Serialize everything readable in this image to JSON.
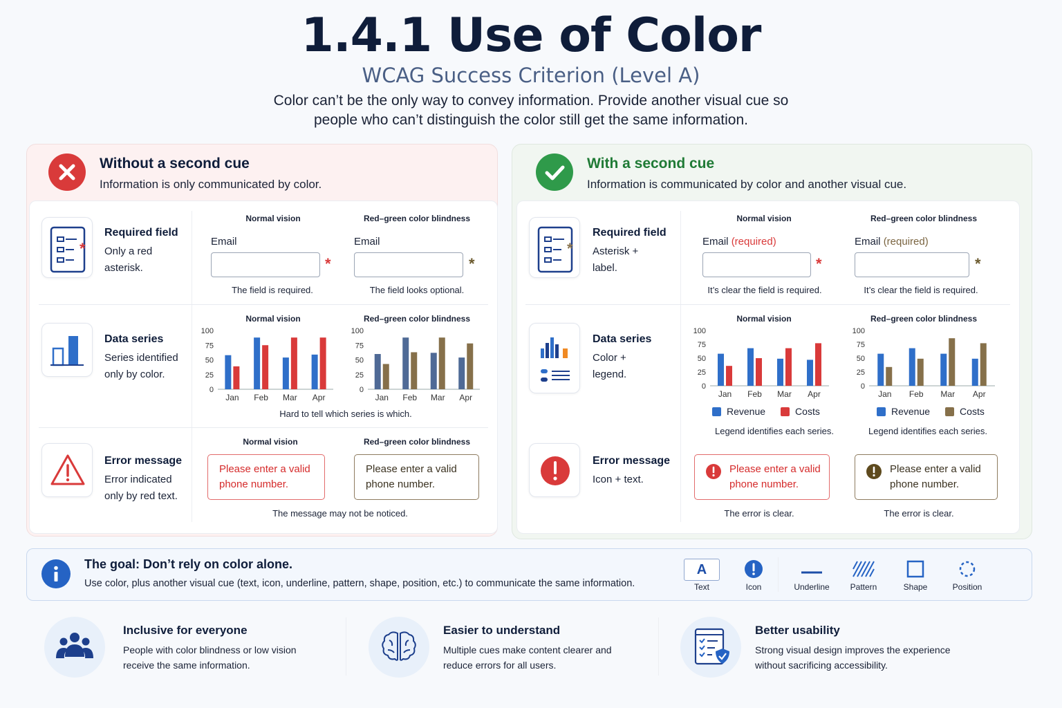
{
  "header": {
    "title": "1.4.1 Use of Color",
    "subtitle": "WCAG Success Criterion (Level A)",
    "description": "Color can’t be the only way to convey information. Provide another visual cue so people who can’t distinguish the color still get the same information."
  },
  "colors": {
    "red": "#d93a3a",
    "blue": "#2f6fc9",
    "brown": "#8b7550",
    "green": "#2f9a4a",
    "navy": "#1d3f8c",
    "olive": "#86704a"
  },
  "without": {
    "title": "Without a second cue",
    "desc": "Information is only communicated by color.",
    "normal": "Normal vision",
    "rg": "Red–green color blindness",
    "req": {
      "title": "Required field",
      "desc": "Only a red asterisk.",
      "label": "Email",
      "asterisk": "*",
      "cap_normal": "The field is required.",
      "cap_rg": "The field looks optional."
    },
    "data": {
      "title": "Data series",
      "desc": "Series identified only by color.",
      "caption": "Hard to tell which series is which."
    },
    "error": {
      "title": "Error message",
      "desc": "Error indicated only by red text.",
      "msg": "Please enter a valid phone number.",
      "caption": "The message may not be noticed."
    }
  },
  "with": {
    "title": "With a second cue",
    "desc": "Information is communicated by color and another visual cue.",
    "normal": "Normal vision",
    "rg": "Red–green color blindness",
    "req": {
      "title": "Required field",
      "desc": "Asterisk + label.",
      "label": "Email",
      "required": "(required)",
      "asterisk": "*",
      "cap": "It’s clear the field is required."
    },
    "data": {
      "title": "Data series",
      "desc": "Color + legend.",
      "caption": "Legend identifies each series.",
      "legend": [
        "Revenue",
        "Costs"
      ]
    },
    "error": {
      "title": "Error message",
      "desc": "Icon + text.",
      "msg": "Please enter a valid phone number.",
      "caption": "The error is clear."
    }
  },
  "chart_data": [
    {
      "type": "bar",
      "panel": "without-normal",
      "categories": [
        "Jan",
        "Feb",
        "Mar",
        "Apr"
      ],
      "yticks": [
        0,
        25,
        50,
        75,
        100
      ],
      "ylim": [
        0,
        100
      ],
      "series": [
        {
          "values": [
            58,
            88,
            54,
            59
          ],
          "color": "#2f6fc9"
        },
        {
          "values": [
            39,
            75,
            88,
            88
          ],
          "color": "#d93a3a"
        }
      ]
    },
    {
      "type": "bar",
      "panel": "without-rg",
      "categories": [
        "Jan",
        "Feb",
        "Mar",
        "Apr"
      ],
      "yticks": [
        0,
        25,
        50,
        75,
        100
      ],
      "ylim": [
        0,
        100
      ],
      "series": [
        {
          "values": [
            60,
            88,
            62,
            54
          ],
          "color": "#4f6a96"
        },
        {
          "values": [
            43,
            63,
            88,
            78
          ],
          "color": "#86704a"
        }
      ]
    },
    {
      "type": "bar",
      "panel": "with-normal",
      "categories": [
        "Jan",
        "Feb",
        "Mar",
        "Apr"
      ],
      "yticks": [
        0,
        25,
        50,
        75,
        100
      ],
      "ylim": [
        0,
        100
      ],
      "series": [
        {
          "name": "Revenue",
          "values": [
            58,
            68,
            49,
            47
          ],
          "color": "#2f6fc9"
        },
        {
          "name": "Costs",
          "values": [
            36,
            50,
            68,
            77
          ],
          "color": "#d93a3a"
        }
      ]
    },
    {
      "type": "bar",
      "panel": "with-rg",
      "categories": [
        "Jan",
        "Feb",
        "Mar",
        "Apr"
      ],
      "yticks": [
        0,
        25,
        50,
        75,
        100
      ],
      "ylim": [
        0,
        100
      ],
      "series": [
        {
          "name": "Revenue",
          "values": [
            58,
            68,
            58,
            49
          ],
          "color": "#2f6fc9"
        },
        {
          "name": "Costs",
          "values": [
            34,
            49,
            86,
            77
          ],
          "color": "#86704a"
        }
      ]
    }
  ],
  "goal": {
    "title": "The goal: Don’t rely on color alone.",
    "desc": "Use color, plus another visual cue (text, icon, underline, pattern, shape, position, etc.) to communicate the same information.",
    "cues": [
      {
        "label": "Text",
        "glyph": "A"
      },
      {
        "label": "Icon",
        "glyph": "!"
      },
      {
        "label": "Underline"
      },
      {
        "label": "Pattern"
      },
      {
        "label": "Shape"
      },
      {
        "label": "Position"
      }
    ]
  },
  "benefits": [
    {
      "title": "Inclusive for everyone",
      "desc": "People with color blindness or low vision receive the same information.",
      "icon": "people-icon"
    },
    {
      "title": "Easier to understand",
      "desc": "Multiple cues make content clearer and reduce errors for all users.",
      "icon": "brain-icon"
    },
    {
      "title": "Better usability",
      "desc": "Strong visual design improves the experience without sacrificing accessibility.",
      "icon": "checklist-shield-icon"
    }
  ]
}
